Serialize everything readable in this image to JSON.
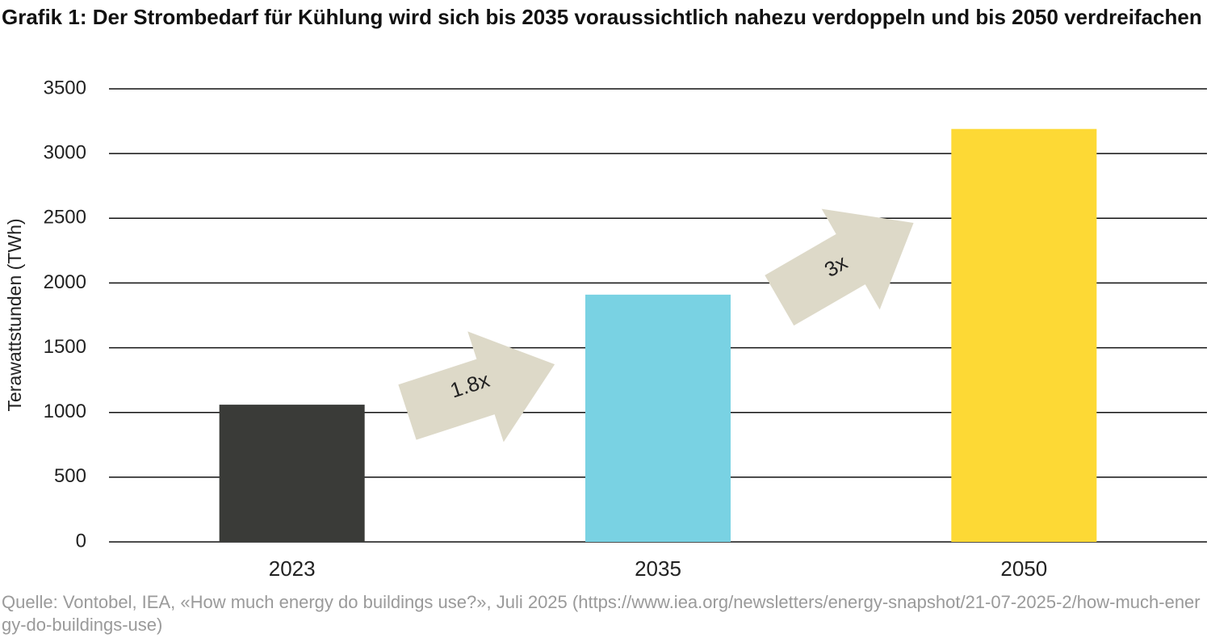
{
  "chart_data": {
    "type": "bar",
    "title": "Grafik 1: Der Strombedarf für Kühlung wird sich bis 2035 voraussichtlich nahezu verdoppeln und bis 2050 verdreifachen",
    "y_label": "Terawattstunden (TWh)",
    "categories": [
      "2023",
      "2035",
      "2050"
    ],
    "values": [
      1060,
      1910,
      3190
    ],
    "colors": [
      "#3a3b38",
      "#79d2e3",
      "#fdd935"
    ],
    "ylim": [
      0,
      3500
    ],
    "yticks": [
      0,
      500,
      1000,
      1500,
      2000,
      2500,
      3000,
      3500
    ],
    "grid": true,
    "annotations": [
      "1.8x",
      "3x"
    ],
    "source": "Quelle: Vontobel, IEA, «How much energy do buildings use?», Juli 2025 (https://www.iea.org/newsletters/energy-snapshot/21-07-2025-2/how-much-energy-do-buildings-use)"
  }
}
